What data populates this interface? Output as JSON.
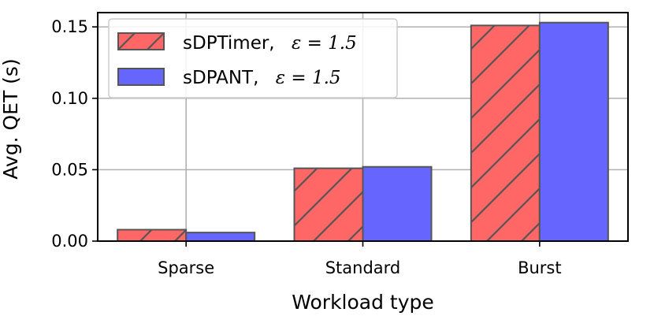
{
  "chart_data": {
    "type": "bar",
    "xlabel": "Workload type",
    "ylabel": "Avg. QET (s)",
    "categories": [
      "Sparse",
      "Standard",
      "Burst"
    ],
    "ylim": [
      0,
      0.16
    ],
    "yticks": [
      "0.00",
      "0.05",
      "0.10",
      "0.15"
    ],
    "grid": true,
    "legend_position": "top-left",
    "series": [
      {
        "name": "sDPTimer,",
        "epsilon": "ε = 1.5",
        "values": [
          0.008,
          0.051,
          0.151
        ],
        "color": "#ff6666",
        "hatch": "/"
      },
      {
        "name": "sDPANT,",
        "epsilon": "ε = 1.5",
        "values": [
          0.006,
          0.052,
          0.153
        ],
        "color": "#6666ff"
      }
    ]
  }
}
